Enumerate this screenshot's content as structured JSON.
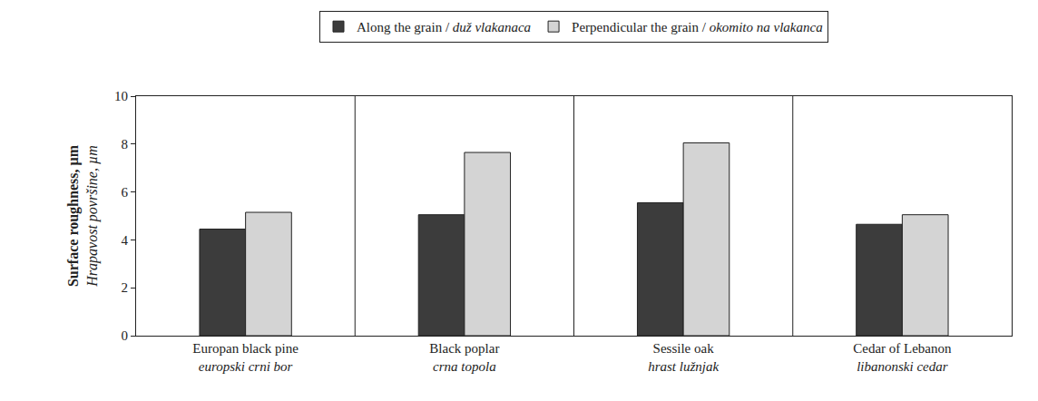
{
  "chart_data": {
    "type": "bar",
    "categories": [
      "Europan black pine\neuropski crni bor",
      "Black poplar\ncrna topola",
      "Sessile oak\nhrast lužnjak",
      "Cedar of Lebanon\nlibanonski cedar"
    ],
    "series": [
      {
        "name": "Along the grain / duž vlakanaca",
        "color": "#3c3c3c",
        "values": [
          4.45,
          5.05,
          5.55,
          4.65
        ]
      },
      {
        "name": "Perpendicular the grain / okomito na vlakanca",
        "color": "#d4d4d4",
        "values": [
          5.15,
          7.65,
          8.05,
          5.05
        ]
      }
    ],
    "y_label": "Surface roughness, µm\nHrapavost površine, µm",
    "ylim": [
      0,
      10
    ],
    "yticks": [
      0,
      2,
      4,
      6,
      8,
      10
    ],
    "grid": false,
    "legend": "top"
  }
}
